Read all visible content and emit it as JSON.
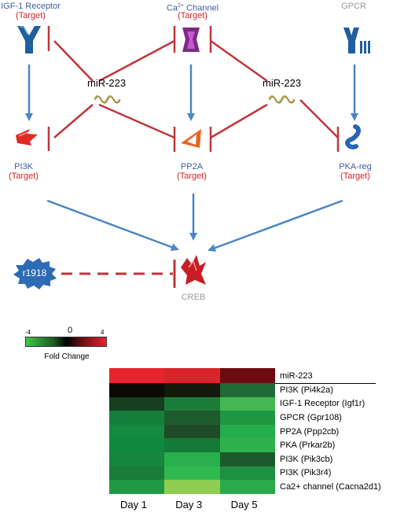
{
  "nodes": {
    "igf1r": {
      "name": "IGF-1 Receptor",
      "tag": "(Target)"
    },
    "ca": {
      "name_prefix": "Ca",
      "name_sup": "2+",
      "name_suffix": " Channel",
      "tag": "(Target)"
    },
    "gpcr": {
      "name": "GPCR"
    },
    "pi3k": {
      "name": "PI3K",
      "tag": "(Target)"
    },
    "pp2a": {
      "name": "PP2A",
      "tag": "(Target)"
    },
    "pka": {
      "name": "PKA-reg",
      "tag": "(Target)"
    },
    "creb": {
      "name": "CREB"
    },
    "r1918": {
      "name": "r1918"
    }
  },
  "mirna_labels": [
    "miR-223",
    "miR-223"
  ],
  "colors": {
    "activation_arrow": "#4a86c8",
    "inhibition": "#c0353a",
    "node_blue": "#1f5f9e",
    "target_red": "#d2232a"
  },
  "scale": {
    "min": "-4",
    "mid": "0",
    "max": "4",
    "label": "Fold Change"
  },
  "heatmap": {
    "columns": [
      "Day 1",
      "Day 3",
      "Day 5"
    ],
    "rows": [
      {
        "label": "miR-223",
        "colors": [
          "#e8232d",
          "#d8242a",
          "#6a0b10"
        ]
      },
      {
        "label": "PI3K (Pi4k2a)",
        "colors": [
          "#0b0a05",
          "#141b0d",
          "#1f6a35"
        ]
      },
      {
        "label": "IGF-1 Receptor (Igf1r)",
        "colors": [
          "#153f1f",
          "#1c7d3a",
          "#45b752"
        ]
      },
      {
        "label": "GPCR (Gpr108)",
        "colors": [
          "#167e3b",
          "#1d5b2c",
          "#1f9642"
        ]
      },
      {
        "label": "PP2A (Ppp2cb)",
        "colors": [
          "#138a3f",
          "#204b27",
          "#25ad4b"
        ]
      },
      {
        "label": "PKA (Prkar2b)",
        "colors": [
          "#0f8a3d",
          "#137a37",
          "#2fb24d"
        ]
      },
      {
        "label": "PI3K (Pik3cb)",
        "colors": [
          "#16853d",
          "#27b04b",
          "#1d5a2c"
        ]
      },
      {
        "label": "PI3K (Pik3r4)",
        "colors": [
          "#1a7c39",
          "#30b851",
          "#1f8f41"
        ]
      },
      {
        "label": "Ca2+ channel (Cacna2d1)",
        "colors": [
          "#1f9a44",
          "#8fcd50",
          "#2aaa4a"
        ]
      }
    ]
  }
}
